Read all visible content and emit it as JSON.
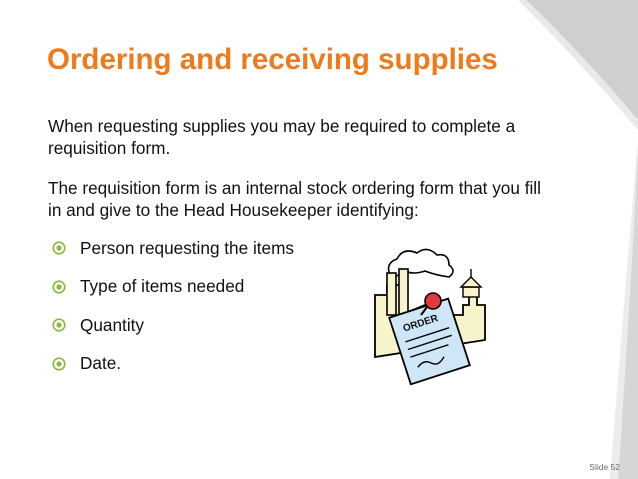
{
  "slide": {
    "title": "Ordering and receiving supplies",
    "paragraphs": [
      "When requesting supplies you may be required to complete a requisition form.",
      "The requisition form is an internal stock ordering form that you fill in and give to the Head Housekeeper identifying:"
    ],
    "bullets": [
      "Person requesting the items",
      "Type of items needed",
      "Quantity",
      "Date."
    ],
    "bullet_icon": "circled-dot-icon",
    "clipart": {
      "icon": "factory-order-clipart",
      "stamp_text": "ORDER"
    },
    "slide_number": "Slide 52",
    "colors": {
      "title": "#ed7b1c",
      "bullet": "#8cb83d",
      "text": "#111111"
    }
  }
}
